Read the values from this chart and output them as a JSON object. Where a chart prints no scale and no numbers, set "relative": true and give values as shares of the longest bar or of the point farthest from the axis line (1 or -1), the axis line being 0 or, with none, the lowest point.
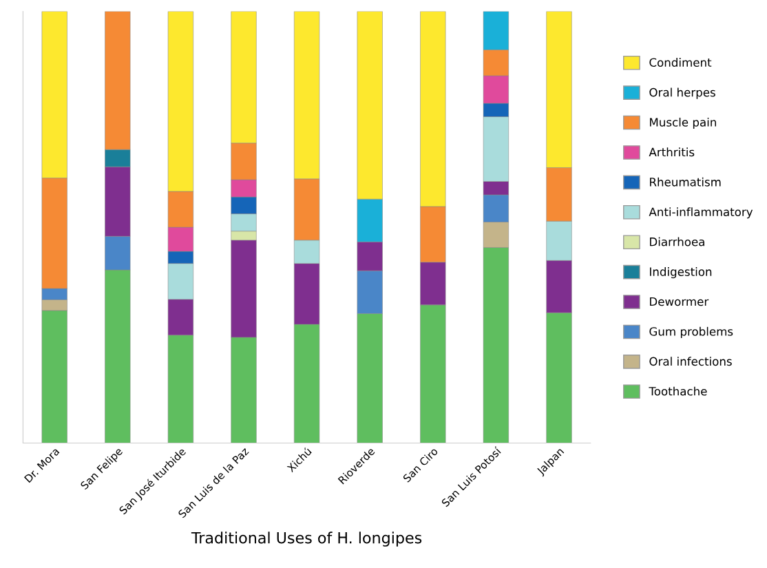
{
  "chart_data": {
    "type": "bar",
    "stacked": true,
    "relative": true,
    "xlabel": "Traditional Uses of H. longipes",
    "legend": "right",
    "grid": false,
    "categories": [
      "Dr. Mora",
      "San Felipe",
      "San José Iturbide",
      "San Luis de la Paz",
      "Xichú",
      "Rioverde",
      "San Ciro",
      "San Luis Potosí",
      "Jalpan"
    ],
    "series": [
      {
        "name": "Toothache",
        "color": "#5fbe5f",
        "values": [
          0.307,
          0.401,
          0.25,
          0.245,
          0.275,
          0.3,
          0.32,
          0.453,
          0.302
        ]
      },
      {
        "name": "Oral infections",
        "color": "#c4b48a",
        "values": [
          0.025,
          null,
          null,
          null,
          null,
          null,
          null,
          0.059,
          null
        ]
      },
      {
        "name": "Gum problems",
        "color": "#4a86c8",
        "values": [
          0.026,
          0.078,
          null,
          null,
          null,
          0.099,
          null,
          0.063,
          null
        ]
      },
      {
        "name": "Dewormer",
        "color": "#7f2f8f",
        "values": [
          null,
          0.161,
          0.083,
          0.225,
          0.141,
          0.067,
          0.099,
          0.031,
          0.121
        ]
      },
      {
        "name": "Indigestion",
        "color": "#1a7f99",
        "values": [
          null,
          0.04,
          null,
          null,
          null,
          null,
          null,
          null,
          null
        ]
      },
      {
        "name": "Diarrhoea",
        "color": "#d8e6a8",
        "values": [
          null,
          null,
          null,
          0.021,
          null,
          null,
          null,
          null,
          null
        ]
      },
      {
        "name": "Anti-inflammatory",
        "color": "#a9dcdc",
        "values": [
          null,
          null,
          0.083,
          0.04,
          0.054,
          null,
          null,
          0.15,
          0.091
        ]
      },
      {
        "name": "Rheumatism",
        "color": "#1565b8",
        "values": [
          null,
          null,
          0.028,
          0.039,
          null,
          null,
          null,
          0.031,
          null
        ]
      },
      {
        "name": "Arthritis",
        "color": "#e04a9c",
        "values": [
          null,
          null,
          0.056,
          0.04,
          null,
          null,
          null,
          0.064,
          null
        ]
      },
      {
        "name": "Muscle pain",
        "color": "#f58a35",
        "values": [
          0.256,
          0.32,
          0.083,
          0.085,
          0.142,
          null,
          0.129,
          0.06,
          0.124
        ]
      },
      {
        "name": "Oral herpes",
        "color": "#1ab0d8",
        "values": [
          null,
          null,
          null,
          null,
          null,
          0.099,
          null,
          0.089,
          null
        ]
      },
      {
        "name": "Condiment",
        "color": "#fde82e",
        "values": [
          0.386,
          null,
          0.417,
          0.305,
          0.388,
          0.435,
          0.452,
          null,
          0.362
        ]
      }
    ]
  }
}
